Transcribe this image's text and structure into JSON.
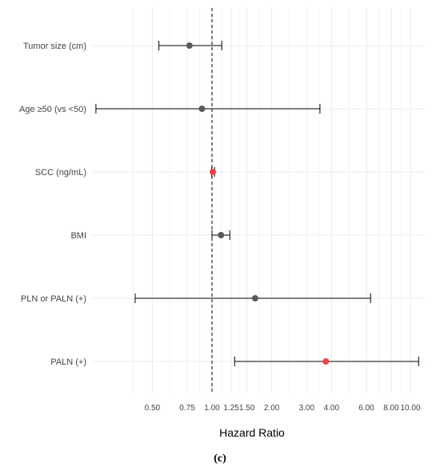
{
  "caption": "(c)",
  "chart_data": {
    "type": "forest",
    "title": "",
    "xlabel": "Hazard Ratio",
    "ylabel": "",
    "x_scale": "log",
    "xlim": [
      0.3,
      13
    ],
    "x_ticks": [
      {
        "value": 0.5,
        "label": "0.50"
      },
      {
        "value": 0.75,
        "label": "0.75"
      },
      {
        "value": 1.0,
        "label": "1.00"
      },
      {
        "value": 1.25,
        "label": "1.25"
      },
      {
        "value": 1.5,
        "label": "1.50"
      },
      {
        "value": 2.0,
        "label": "2.00"
      },
      {
        "value": 3.0,
        "label": "3.00"
      },
      {
        "value": 4.0,
        "label": "4.00"
      },
      {
        "value": 6.0,
        "label": "6.00"
      },
      {
        "value": 8.0,
        "label": "8.00"
      },
      {
        "value": 10.0,
        "label": "10.00"
      }
    ],
    "reference_line": 1.0,
    "grid": true,
    "colors": {
      "significant": "#ee4444",
      "nonsignificant": "#5a5a5a",
      "line": "#000000",
      "grid": "#ebebeb"
    },
    "rows": [
      {
        "label": "Tumor size (cm)",
        "hr": 0.77,
        "lower": 0.54,
        "upper": 1.12,
        "significant": false
      },
      {
        "label": "Age ≥50 (vs <50)",
        "hr": 0.89,
        "lower": 0.26,
        "upper": 3.5,
        "significant": false
      },
      {
        "label": "SCC (ng/mL)",
        "hr": 1.01,
        "lower": 0.995,
        "upper": 1.03,
        "significant": true
      },
      {
        "label": "BMI",
        "hr": 1.11,
        "lower": 1.0,
        "upper": 1.23,
        "significant": false
      },
      {
        "label": "PLN or PALN (+)",
        "hr": 1.65,
        "lower": 0.41,
        "upper": 6.3,
        "significant": false
      },
      {
        "label": "PALN (+)",
        "hr": 3.75,
        "lower": 1.3,
        "upper": 11.0,
        "significant": true
      }
    ]
  }
}
